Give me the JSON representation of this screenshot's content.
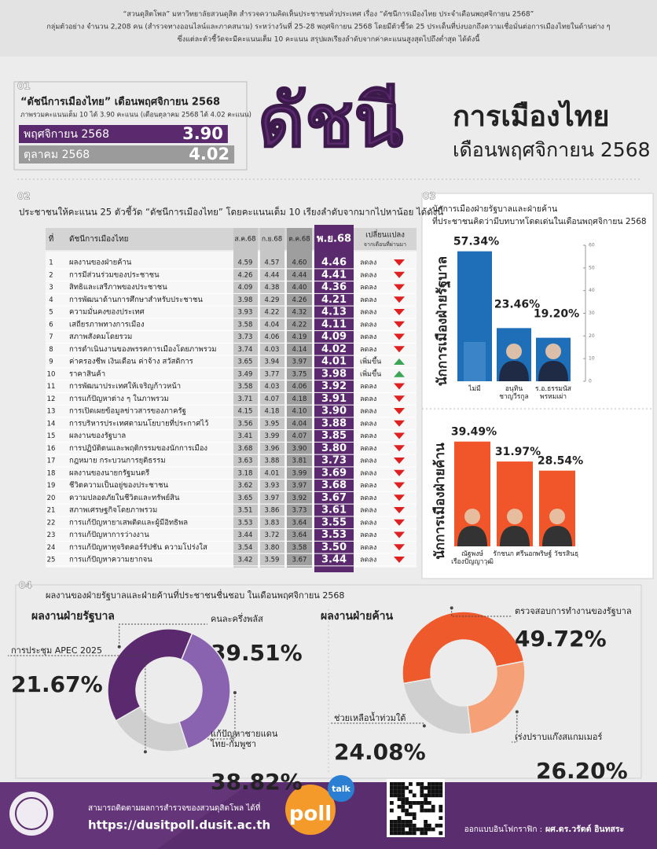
{
  "header": {
    "lines": [
      "“สวนดุสิตโพล” มหาวิทยาลัยสวนดุสิต สำรวจความคิดเห็นประชาชนทั่วประเทศ เรื่อง “ดัชนีการเมืองไทย ประจำเดือนพฤศจิกายน 2568”",
      "กลุ่มตัวอย่าง จำนวน 2,208 คน (สำรวจทางออนไลน์และภาคสนาม) ระหว่างวันที่ 25-28 พฤศจิกายน 2568 โดยมีตัวชี้วัด 25 ประเด็นที่บ่งบอกถึงความเชื่อมั่นต่อการเมืองไทยในด้านต่าง ๆ",
      "ซึ่งแต่ละตัวชี้วัดจะมีคะแนนเต็ม 10 คะแนน สรุปผลเรียงลำดับจากค่าคะแนนสูงสุดไปถึงต่ำสุด ได้ดังนี้"
    ]
  },
  "section_numbers": [
    "01",
    "02",
    "03",
    "04"
  ],
  "banner": {
    "title": "ดัชนี",
    "subtitle": "การเมืองไทย",
    "period": "เดือนพฤศจิกายน 2568"
  },
  "table": {
    "title": "ประชาชนให้คะแนน 25 ตัวชี้วัด “ดัชนีการเมืองไทย” โดยคะแนนเต็ม 10 เรียงลำดับจากมากไปหาน้อย ได้ดังนี้",
    "columns": [
      "ที่",
      "ดัชนีการเมืองไทย",
      "ส.ค.68",
      "ก.ย.68",
      "ต.ค.68",
      "พ.ย.68"
    ],
    "change_label": "เปลี่ยนแปลง",
    "change_sublabel": "จากเดือนที่ผ่านมา",
    "rows": [
      [
        "1",
        "ผลงานของฝ่ายค้าน",
        "4.59",
        "4.57",
        "4.60",
        "4.46",
        "ลดลง"
      ],
      [
        "2",
        "การมีส่วนร่วมของประชาชน",
        "4.26",
        "4.44",
        "4.44",
        "4.41",
        "ลดลง"
      ],
      [
        "3",
        "สิทธิและเสรีภาพของประชาชน",
        "4.09",
        "4.38",
        "4.40",
        "4.36",
        "ลดลง"
      ],
      [
        "4",
        "การพัฒนาด้านการศึกษาสำหรับประชาชน",
        "3.98",
        "4.29",
        "4.26",
        "4.21",
        "ลดลง"
      ],
      [
        "5",
        "ความมั่นคงของประเทศ",
        "3.93",
        "4.22",
        "4.32",
        "4.13",
        "ลดลง"
      ],
      [
        "6",
        "เสถียรภาพทางการเมือง",
        "3.58",
        "4.04",
        "4.22",
        "4.11",
        "ลดลง"
      ],
      [
        "7",
        "สภาพสังคมโดยรวม",
        "3.73",
        "4.06",
        "4.19",
        "4.09",
        "ลดลง"
      ],
      [
        "8",
        "การดำเนินงานของพรรคการเมืองโดยภาพรวม",
        "3.74",
        "4.03",
        "4.14",
        "4.02",
        "ลดลง"
      ],
      [
        "9",
        "ค่าครองชีพ เงินเดือน ค่าจ้าง สวัสดิการ",
        "3.65",
        "3.94",
        "3.97",
        "4.01",
        "เพิ่มขึ้น"
      ],
      [
        "10",
        "ราคาสินค้า",
        "3.49",
        "3.77",
        "3.75",
        "3.98",
        "เพิ่มขึ้น"
      ],
      [
        "11",
        "การพัฒนาประเทศให้เจริญก้าวหน้า",
        "3.58",
        "4.03",
        "4.06",
        "3.92",
        "ลดลง"
      ],
      [
        "12",
        "การแก้ปัญหาต่าง ๆ ในภาพรวม",
        "3.71",
        "4.07",
        "4.18",
        "3.91",
        "ลดลง"
      ],
      [
        "13",
        "การเปิดเผยข้อมูลข่าวสารของภาครัฐ",
        "4.15",
        "4.18",
        "4.10",
        "3.90",
        "ลดลง"
      ],
      [
        "14",
        "การบริหารประเทศตามนโยบายที่ประกาศไว้",
        "3.56",
        "3.95",
        "4.04",
        "3.88",
        "ลดลง"
      ],
      [
        "15",
        "ผลงานของรัฐบาล",
        "3.41",
        "3.99",
        "4.07",
        "3.85",
        "ลดลง"
      ],
      [
        "16",
        "การปฏิบัติตนและพฤติกรรมของนักการเมือง",
        "3.68",
        "3.96",
        "3.90",
        "3.80",
        "ลดลง"
      ],
      [
        "17",
        "กฎหมาย กระบวนการยุติธรรม",
        "3.63",
        "3.88",
        "3.81",
        "3.73",
        "ลดลง"
      ],
      [
        "18",
        "ผลงานของนายกรัฐมนตรี",
        "3.18",
        "4.01",
        "3.99",
        "3.69",
        "ลดลง"
      ],
      [
        "19",
        "ชีวิตความเป็นอยู่ของประชาชน",
        "3.62",
        "3.93",
        "3.97",
        "3.68",
        "ลดลง"
      ],
      [
        "20",
        "ความปลอดภัยในชีวิตและทรัพย์สิน",
        "3.65",
        "3.97",
        "3.92",
        "3.67",
        "ลดลง"
      ],
      [
        "21",
        "สภาพเศรษฐกิจโดยภาพรวม",
        "3.51",
        "3.86",
        "3.73",
        "3.61",
        "ลดลง"
      ],
      [
        "22",
        "การแก้ปัญหายาเสพติดและผู้มีอิทธิพล",
        "3.53",
        "3.83",
        "3.64",
        "3.55",
        "ลดลง"
      ],
      [
        "23",
        "การแก้ปัญหาการว่างงาน",
        "3.44",
        "3.72",
        "3.64",
        "3.53",
        "ลดลง"
      ],
      [
        "24",
        "การแก้ปัญหาทุจริตคอร์รัปชัน ความโปร่งใส",
        "3.54",
        "3.80",
        "3.58",
        "3.50",
        "ลดลง"
      ],
      [
        "25",
        "การแก้ปัญหาความยากจน",
        "3.42",
        "3.59",
        "3.67",
        "3.44",
        "ลดลง"
      ]
    ]
  },
  "roles": {
    "title": "นักการเมืองฝ่ายรัฐบาลและฝ่ายค้าน",
    "subtitle": "ที่ประชาชนคิดว่ามีบทบาทโดดเด่นในเดือนพฤศจิกายน 2568"
  },
  "favorites": {
    "title": "ผลงานของฝ่ายรัฐบาลและฝ่ายค้านที่ประชาชนชื่นชอบ ในเดือนพฤศจิกายน 2568"
  },
  "chart_data": [
    {
      "type": "bar",
      "orientation": "horizontal",
      "title": "“ดัชนีการเมืองไทย” เดือนพฤศจิกายน 2568",
      "subtitle": "ภาพรวมคะแนนเต็ม 10 ได้ 3.90 คะแนน (เดือนตุลาคม 2568 ได้ 4.02 คะแนน)",
      "categories": [
        "พฤศจิกายน 2568",
        "ตุลาคม 2568"
      ],
      "values": [
        3.9,
        4.02
      ],
      "value_labels": [
        "3.90",
        "4.02"
      ],
      "colors": [
        "#5b2a6e",
        "#9b9b9b"
      ],
      "xlim": [
        0,
        4.4
      ]
    },
    {
      "type": "bar",
      "y_label": "นักการเมืองฝ่ายรัฐบาล",
      "categories": [
        "ไม่มี",
        "อนุทิน\nชาญวีรกูล",
        "ร.อ.ธรรมนัส\nพรหมเผ่า"
      ],
      "values": [
        57.34,
        23.46,
        19.2
      ],
      "value_labels": [
        "57.34%",
        "23.46%",
        "19.20%"
      ],
      "color": "#1f6fb8",
      "ylim": [
        0,
        60
      ],
      "yticks": [
        0,
        10,
        20,
        30,
        40,
        50,
        60
      ]
    },
    {
      "type": "bar",
      "y_label": "นักการเมืองฝ่ายค้าน",
      "categories": [
        "ณัฐพงษ์\nเรืองปัญญาวุฒิ",
        "รักชนก ศรีนอก",
        "พริษฐ์ วัชรสินธุ"
      ],
      "values": [
        39.49,
        31.97,
        28.54
      ],
      "value_labels": [
        "39.49%",
        "31.97%",
        "28.54%"
      ],
      "color": "#f0562a",
      "ylim": [
        0,
        40
      ]
    },
    {
      "type": "pie",
      "donut": true,
      "title": "ผลงานฝ่ายรัฐบาล",
      "categories": [
        "คนละครึ่งพลัส",
        "แก้ปัญหาชายแดน\nไทย-กัมพูชา",
        "การประชุม APEC 2025"
      ],
      "values": [
        39.51,
        38.82,
        21.67
      ],
      "value_labels": [
        "39.51%",
        "38.82%",
        "21.67%"
      ],
      "colors": [
        "#5b2a6e",
        "#8a63b0",
        "#cfcfcf"
      ]
    },
    {
      "type": "pie",
      "donut": true,
      "title": "ผลงานฝ่ายค้าน",
      "categories": [
        "ตรวจสอบการทำงานของรัฐบาล",
        "เร่งปราบแก๊งสแกมเมอร์",
        "ช่วยเหลือน้ำท่วมใต้"
      ],
      "values": [
        49.72,
        26.2,
        24.08
      ],
      "value_labels": [
        "49.72%",
        "26.20%",
        "24.08%"
      ],
      "colors": [
        "#ee5a2c",
        "#f5a077",
        "#cfcfcf"
      ]
    }
  ],
  "footer": {
    "follow": "สามารถติดตามผลการสำรวจของสวนดุสิตโพล ได้ที่",
    "url": "https://dusitpoll.dusit.ac.th",
    "credit_label": "ออกแบบอินโฟกราฟิก :",
    "credit_name": "ผศ.ดร.วรัตต์ อินทสระ",
    "logo": "poll",
    "logo_badge": "talk"
  }
}
